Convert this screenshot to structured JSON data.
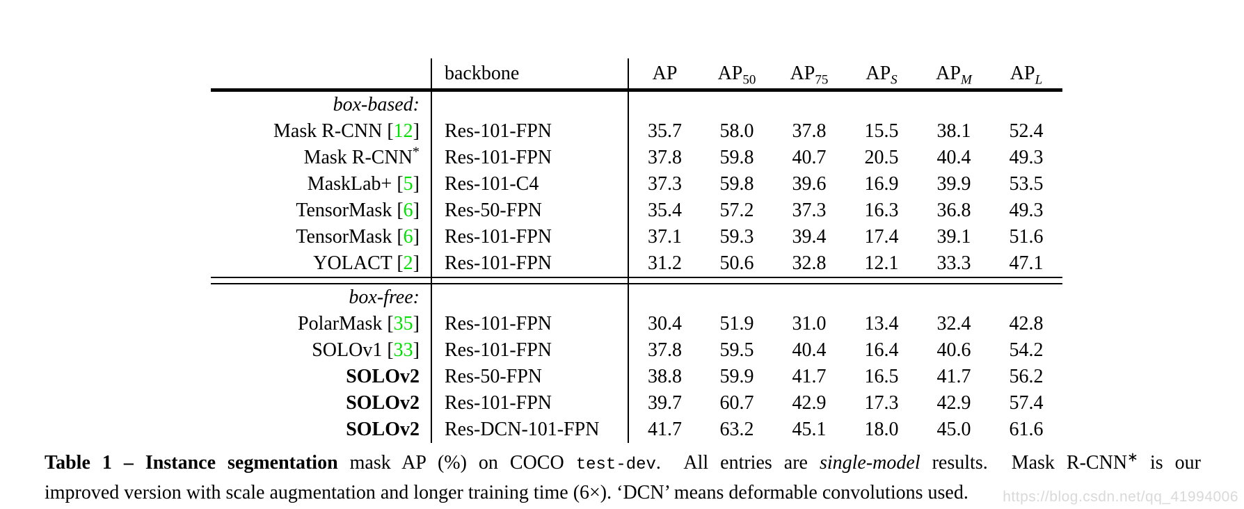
{
  "colors": {
    "citation_green": "#00e000",
    "watermark_gray": "#d9d9d9"
  },
  "table": {
    "backbone_header": "backbone",
    "metric_headers": [
      {
        "base": "AP",
        "sub": "",
        "italic_sub": false
      },
      {
        "base": "AP",
        "sub": "50",
        "italic_sub": false
      },
      {
        "base": "AP",
        "sub": "75",
        "italic_sub": false
      },
      {
        "base": "AP",
        "sub": "S",
        "italic_sub": true
      },
      {
        "base": "AP",
        "sub": "M",
        "italic_sub": true
      },
      {
        "base": "AP",
        "sub": "L",
        "italic_sub": true
      }
    ],
    "sections": [
      {
        "label": "box-based:",
        "rows": [
          {
            "method": "Mask R-CNN",
            "cite": "12",
            "sup": "",
            "bold_method": false,
            "backbone": "Res-101-FPN",
            "values": [
              "35.7",
              "58.0",
              "37.8",
              "15.5",
              "38.1",
              "52.4"
            ],
            "bold": [
              false,
              false,
              false,
              false,
              false,
              false
            ]
          },
          {
            "method": "Mask R-CNN",
            "cite": "",
            "sup": "*",
            "bold_method": false,
            "backbone": "Res-101-FPN",
            "values": [
              "37.8",
              "59.8",
              "40.7",
              "20.5",
              "40.4",
              "49.3"
            ],
            "bold": [
              false,
              false,
              false,
              true,
              false,
              false
            ]
          },
          {
            "method": "MaskLab+",
            "cite": "5",
            "sup": "",
            "bold_method": false,
            "backbone": "Res-101-C4",
            "values": [
              "37.3",
              "59.8",
              "39.6",
              "16.9",
              "39.9",
              "53.5"
            ],
            "bold": [
              false,
              false,
              false,
              false,
              false,
              false
            ]
          },
          {
            "method": "TensorMask",
            "cite": "6",
            "sup": "",
            "bold_method": false,
            "backbone": "Res-50-FPN",
            "values": [
              "35.4",
              "57.2",
              "37.3",
              "16.3",
              "36.8",
              "49.3"
            ],
            "bold": [
              false,
              false,
              false,
              false,
              false,
              false
            ]
          },
          {
            "method": "TensorMask",
            "cite": "6",
            "sup": "",
            "bold_method": false,
            "backbone": "Res-101-FPN",
            "values": [
              "37.1",
              "59.3",
              "39.4",
              "17.4",
              "39.1",
              "51.6"
            ],
            "bold": [
              false,
              false,
              false,
              false,
              false,
              false
            ]
          },
          {
            "method": "YOLACT",
            "cite": "2",
            "sup": "",
            "bold_method": false,
            "backbone": "Res-101-FPN",
            "values": [
              "31.2",
              "50.6",
              "32.8",
              "12.1",
              "33.3",
              "47.1"
            ],
            "bold": [
              false,
              false,
              false,
              false,
              false,
              false
            ]
          }
        ]
      },
      {
        "label": "box-free:",
        "rows": [
          {
            "method": "PolarMask",
            "cite": "35",
            "sup": "",
            "bold_method": false,
            "backbone": "Res-101-FPN",
            "values": [
              "30.4",
              "51.9",
              "31.0",
              "13.4",
              "32.4",
              "42.8"
            ],
            "bold": [
              false,
              false,
              false,
              false,
              false,
              false
            ]
          },
          {
            "method": "SOLOv1",
            "cite": "33",
            "sup": "",
            "bold_method": false,
            "backbone": "Res-101-FPN",
            "values": [
              "37.8",
              "59.5",
              "40.4",
              "16.4",
              "40.6",
              "54.2"
            ],
            "bold": [
              false,
              false,
              false,
              false,
              false,
              false
            ]
          },
          {
            "method": "SOLOv2",
            "cite": "",
            "sup": "",
            "bold_method": true,
            "backbone": "Res-50-FPN",
            "values": [
              "38.8",
              "59.9",
              "41.7",
              "16.5",
              "41.7",
              "56.2"
            ],
            "bold": [
              false,
              false,
              false,
              false,
              false,
              false
            ]
          },
          {
            "method": "SOLOv2",
            "cite": "",
            "sup": "",
            "bold_method": true,
            "backbone": "Res-101-FPN",
            "values": [
              "39.7",
              "60.7",
              "42.9",
              "17.3",
              "42.9",
              "57.4"
            ],
            "bold": [
              false,
              false,
              false,
              false,
              false,
              false
            ]
          },
          {
            "method": "SOLOv2",
            "cite": "",
            "sup": "",
            "bold_method": true,
            "backbone": "Res-DCN-101-FPN",
            "values": [
              "41.7",
              "63.2",
              "45.1",
              "18.0",
              "45.0",
              "61.6"
            ],
            "bold": [
              true,
              true,
              true,
              false,
              true,
              true
            ]
          }
        ]
      }
    ]
  },
  "caption": {
    "line1": [
      {
        "style": "bold",
        "text": "Table 1 – Instance segmentation"
      },
      {
        "style": "normal",
        "text": " mask AP (%) on COCO "
      },
      {
        "style": "mono",
        "text": "test-dev"
      },
      {
        "style": "normal",
        "text": ".  All entries are "
      },
      {
        "style": "italic",
        "text": "single-model"
      },
      {
        "style": "normal",
        "text": " results.  Mask R-CNN"
      },
      {
        "style": "sup",
        "text": "∗"
      },
      {
        "style": "normal",
        "text": " is our"
      }
    ],
    "line2": [
      {
        "style": "normal",
        "text": "improved version with scale augmentation and longer training time (6×). ‘DCN’ means deformable convolutions used."
      }
    ]
  },
  "watermark": {
    "text": "https://blog.csdn.net/qq_41994006"
  }
}
